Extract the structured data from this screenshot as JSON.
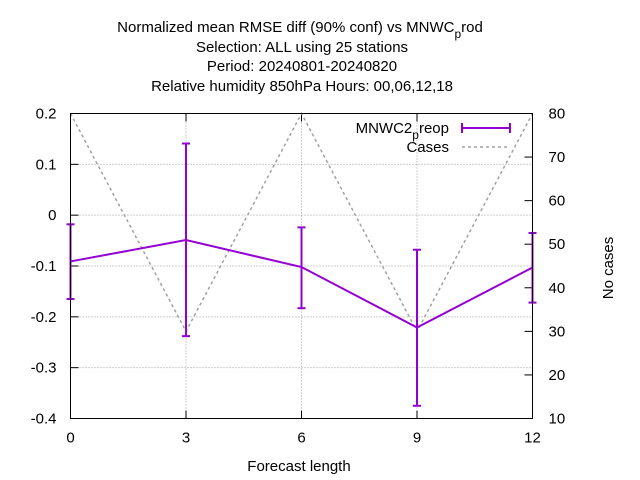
{
  "chart_data": {
    "type": "line",
    "title_lines": [
      [
        "Normalized mean RMSE diff (90% conf) vs MNWC",
        "p",
        "rod"
      ],
      [
        "Selection: ALL using    25 stations"
      ],
      [
        "Period: 20240801-20240820"
      ],
      [
        "Relative humidity 850hPa   Hours:  00,06,12,18"
      ]
    ],
    "xlabel": "Forecast length",
    "ylabel": "",
    "y2label": "No cases",
    "x_ticks": [
      0,
      3,
      6,
      9,
      12
    ],
    "y_ticks": [
      0.2,
      0.1,
      0,
      -0.1,
      -0.2,
      -0.3,
      -0.4
    ],
    "y_tick_labels": [
      "0.2",
      "0.1",
      "0",
      "-0.1",
      "-0.2",
      "-0.3",
      "-0.4"
    ],
    "y2_ticks": [
      80,
      70,
      60,
      50,
      40,
      30,
      20,
      10
    ],
    "xlim": [
      0,
      12
    ],
    "ylim": [
      -0.4,
      0.2
    ],
    "y2lim": [
      10,
      80
    ],
    "grid": true,
    "legend_position": "top-right",
    "series": [
      {
        "name": "MNWC2_preop",
        "name_parts": [
          "MNWC2",
          "p",
          "reop"
        ],
        "axis": "y",
        "color": "#9400d3",
        "style": "solid-errorbars",
        "x": [
          0,
          3,
          6,
          9,
          12
        ],
        "y": [
          -0.091,
          -0.049,
          -0.102,
          -0.221,
          -0.103
        ],
        "err_low": [
          -0.165,
          -0.238,
          -0.183,
          -0.375,
          -0.172
        ],
        "err_high": [
          -0.018,
          0.141,
          -0.024,
          -0.068,
          -0.035
        ]
      },
      {
        "name": "Cases",
        "axis": "y2",
        "color": "#a0a0a0",
        "style": "dashed",
        "x": [
          0,
          3,
          6,
          9,
          12
        ],
        "y": [
          80,
          30,
          80,
          30,
          80
        ]
      }
    ]
  }
}
